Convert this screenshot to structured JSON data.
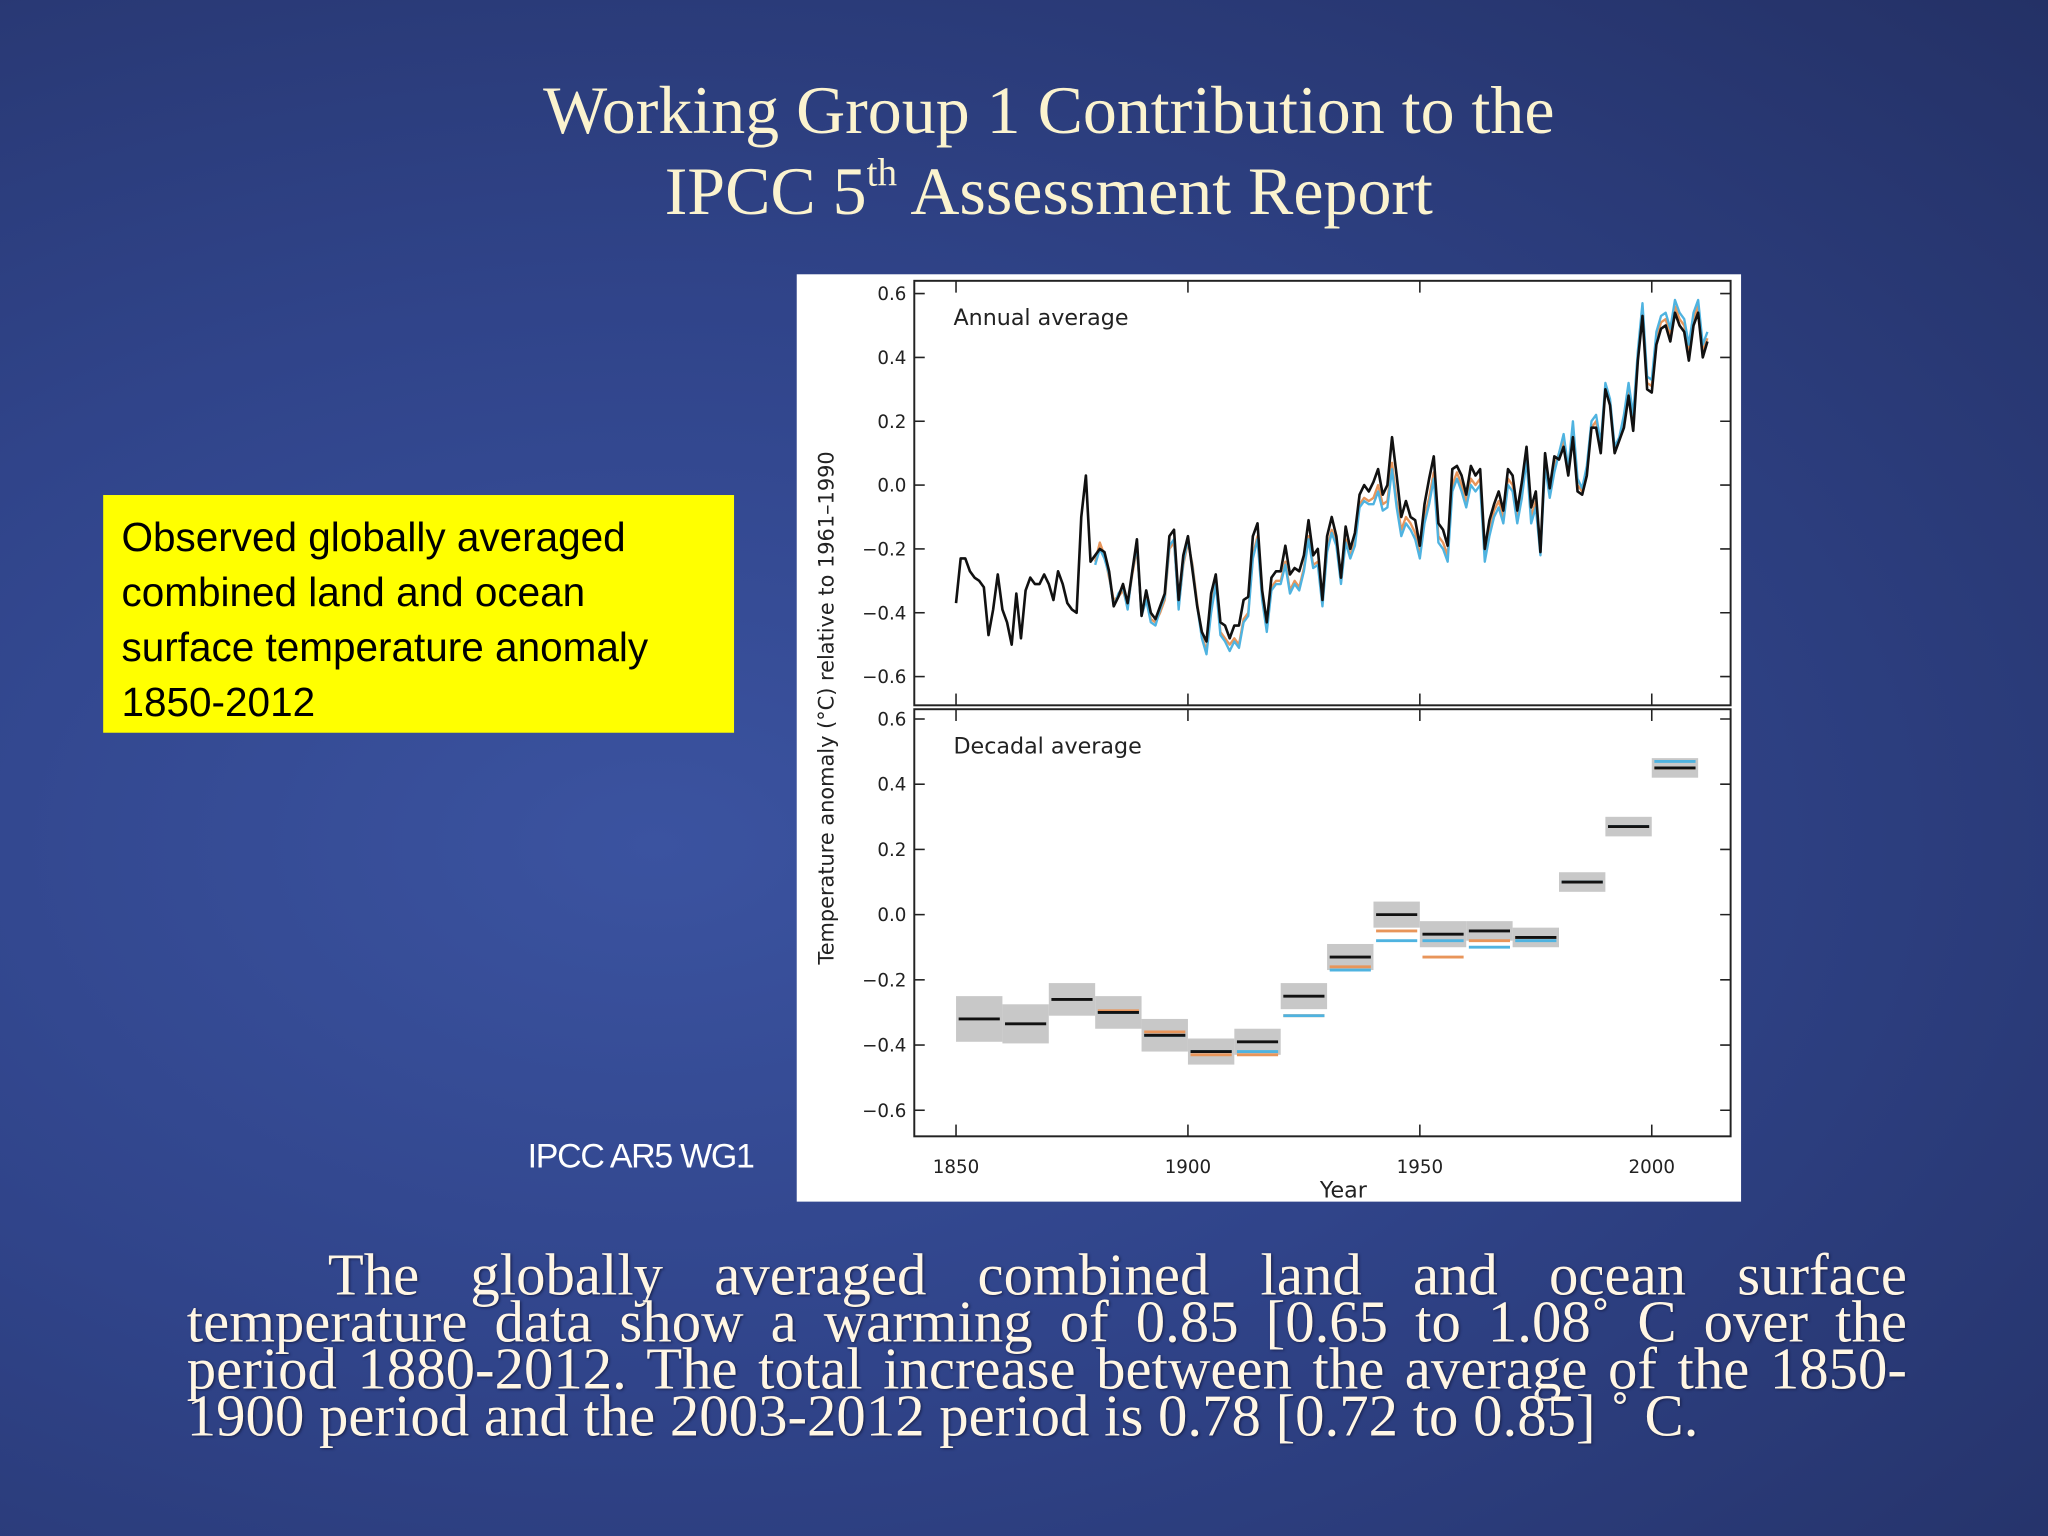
{
  "slide": {
    "title_line1": "Working Group 1 Contribution to the",
    "title_line2": {
      "before": "IPCC 5",
      "sup": "th",
      "after": " Assessment Report"
    },
    "caption": "Observed globally averaged combined land and ocean surface temperature anomaly 1850-2012",
    "source": "IPCC AR5 WG1",
    "body": "The globally averaged combined land and ocean surface temperature data show a warming of 0.85 [0.65 to 1.08˚ C over the period 1880-2012. The total increase between the average of the 1850-1900 period and the 2003-2012 period is 0.78 [0.72 to 0.85] ˚ C."
  },
  "chart_data": [
    {
      "type": "line",
      "annotation": "Annual average",
      "ylabel": "Temperature anomaly (°C) relative to 1961–1990",
      "xlim": [
        1841,
        2017
      ],
      "xticks": [
        1850,
        1900,
        1950,
        2000
      ],
      "ylim": [
        -0.69,
        0.64
      ],
      "yticks": [
        {
          "value": -0.6,
          "label": "−0.6"
        },
        {
          "value": -0.4,
          "label": "−0.4"
        },
        {
          "value": -0.2,
          "label": "−0.2"
        },
        {
          "value": 0,
          "label": "0.0"
        },
        0.2,
        0.4,
        0.6
      ],
      "x": [
        1850,
        1851,
        1852,
        1853,
        1854,
        1855,
        1856,
        1857,
        1858,
        1859,
        1860,
        1861,
        1862,
        1863,
        1864,
        1865,
        1866,
        1867,
        1868,
        1869,
        1870,
        1871,
        1872,
        1873,
        1874,
        1875,
        1876,
        1877,
        1878,
        1879,
        1880,
        1881,
        1882,
        1883,
        1884,
        1885,
        1886,
        1887,
        1888,
        1889,
        1890,
        1891,
        1892,
        1893,
        1894,
        1895,
        1896,
        1897,
        1898,
        1899,
        1900,
        1901,
        1902,
        1903,
        1904,
        1905,
        1906,
        1907,
        1908,
        1909,
        1910,
        1911,
        1912,
        1913,
        1914,
        1915,
        1916,
        1917,
        1918,
        1919,
        1920,
        1921,
        1922,
        1923,
        1924,
        1925,
        1926,
        1927,
        1928,
        1929,
        1930,
        1931,
        1932,
        1933,
        1934,
        1935,
        1936,
        1937,
        1938,
        1939,
        1940,
        1941,
        1942,
        1943,
        1944,
        1945,
        1946,
        1947,
        1948,
        1949,
        1950,
        1951,
        1952,
        1953,
        1954,
        1955,
        1956,
        1957,
        1958,
        1959,
        1960,
        1961,
        1962,
        1963,
        1964,
        1965,
        1966,
        1967,
        1968,
        1969,
        1970,
        1971,
        1972,
        1973,
        1974,
        1975,
        1976,
        1977,
        1978,
        1979,
        1980,
        1981,
        1982,
        1983,
        1984,
        1985,
        1986,
        1987,
        1988,
        1989,
        1990,
        1991,
        1992,
        1993,
        1994,
        1995,
        1996,
        1997,
        1998,
        1999,
        2000,
        2001,
        2002,
        2003,
        2004,
        2005,
        2006,
        2007,
        2008,
        2009,
        2010,
        2011,
        2012
      ],
      "series": [
        {
          "color": "#111111",
          "values": [
            -0.37,
            -0.23,
            -0.23,
            -0.27,
            -0.29,
            -0.3,
            -0.32,
            -0.47,
            -0.39,
            -0.28,
            -0.39,
            -0.43,
            -0.5,
            -0.34,
            -0.48,
            -0.33,
            -0.29,
            -0.31,
            -0.31,
            -0.28,
            -0.31,
            -0.36,
            -0.27,
            -0.31,
            -0.37,
            -0.39,
            -0.4,
            -0.1,
            0.03,
            -0.24,
            -0.22,
            -0.2,
            -0.21,
            -0.27,
            -0.38,
            -0.35,
            -0.31,
            -0.37,
            -0.27,
            -0.17,
            -0.41,
            -0.33,
            -0.4,
            -0.42,
            -0.38,
            -0.34,
            -0.16,
            -0.14,
            -0.36,
            -0.22,
            -0.16,
            -0.27,
            -0.38,
            -0.46,
            -0.49,
            -0.34,
            -0.28,
            -0.43,
            -0.44,
            -0.48,
            -0.44,
            -0.44,
            -0.36,
            -0.35,
            -0.16,
            -0.12,
            -0.33,
            -0.43,
            -0.29,
            -0.27,
            -0.27,
            -0.19,
            -0.28,
            -0.26,
            -0.27,
            -0.22,
            -0.11,
            -0.22,
            -0.2,
            -0.36,
            -0.16,
            -0.1,
            -0.16,
            -0.29,
            -0.13,
            -0.2,
            -0.15,
            -0.03,
            0.0,
            -0.02,
            0.01,
            0.05,
            -0.03,
            0.0,
            0.15,
            0.03,
            -0.1,
            -0.05,
            -0.1,
            -0.11,
            -0.19,
            -0.06,
            0.02,
            0.09,
            -0.12,
            -0.14,
            -0.19,
            0.05,
            0.06,
            0.03,
            -0.03,
            0.06,
            0.03,
            0.05,
            -0.2,
            -0.11,
            -0.06,
            -0.02,
            -0.08,
            0.05,
            0.03,
            -0.08,
            0.01,
            0.12,
            -0.07,
            -0.02,
            -0.21,
            0.1,
            -0.01,
            0.09,
            0.08,
            0.12,
            0.03,
            0.15,
            -0.02,
            -0.03,
            0.03,
            0.18,
            0.18,
            0.1,
            0.3,
            0.25,
            0.1,
            0.14,
            0.18,
            0.28,
            0.17,
            0.39,
            0.53,
            0.3,
            0.29,
            0.44,
            0.49,
            0.5,
            0.45,
            0.54,
            0.5,
            0.48,
            0.39,
            0.5,
            0.54,
            0.4,
            0.45
          ]
        },
        {
          "color": "#4fb3e0",
          "values": [
            null,
            null,
            null,
            null,
            null,
            null,
            null,
            null,
            null,
            null,
            null,
            null,
            null,
            null,
            null,
            null,
            null,
            null,
            null,
            null,
            null,
            null,
            null,
            null,
            null,
            null,
            null,
            null,
            null,
            null,
            -0.25,
            -0.2,
            -0.23,
            -0.28,
            -0.38,
            -0.34,
            -0.32,
            -0.39,
            -0.27,
            -0.19,
            -0.41,
            -0.36,
            -0.43,
            -0.44,
            -0.39,
            -0.35,
            -0.19,
            -0.17,
            -0.39,
            -0.24,
            -0.17,
            -0.26,
            -0.38,
            -0.48,
            -0.53,
            -0.4,
            -0.31,
            -0.47,
            -0.49,
            -0.52,
            -0.49,
            -0.51,
            -0.43,
            -0.41,
            -0.23,
            -0.17,
            -0.36,
            -0.46,
            -0.33,
            -0.31,
            -0.31,
            -0.25,
            -0.34,
            -0.31,
            -0.33,
            -0.27,
            -0.17,
            -0.26,
            -0.25,
            -0.38,
            -0.21,
            -0.15,
            -0.19,
            -0.31,
            -0.18,
            -0.23,
            -0.19,
            -0.07,
            -0.05,
            -0.06,
            -0.06,
            -0.02,
            -0.08,
            -0.07,
            0.05,
            -0.07,
            -0.16,
            -0.12,
            -0.14,
            -0.17,
            -0.23,
            -0.12,
            -0.06,
            0.02,
            -0.18,
            -0.2,
            -0.24,
            -0.02,
            0.02,
            -0.02,
            -0.07,
            0.0,
            -0.02,
            0.0,
            -0.24,
            -0.16,
            -0.1,
            -0.07,
            -0.12,
            0.0,
            -0.02,
            -0.12,
            -0.04,
            0.08,
            -0.12,
            -0.07,
            -0.22,
            0.06,
            -0.04,
            0.04,
            0.1,
            0.16,
            0.05,
            0.2,
            0.02,
            -0.01,
            0.06,
            0.2,
            0.22,
            0.13,
            0.32,
            0.27,
            0.12,
            0.15,
            0.22,
            0.32,
            0.22,
            0.42,
            0.57,
            0.34,
            0.33,
            0.48,
            0.53,
            0.54,
            0.49,
            0.58,
            0.54,
            0.52,
            0.44,
            0.54,
            0.58,
            0.44,
            0.48
          ]
        },
        {
          "color": "#e8955a",
          "values": [
            null,
            null,
            null,
            null,
            null,
            null,
            null,
            null,
            null,
            null,
            null,
            null,
            null,
            null,
            null,
            null,
            null,
            null,
            null,
            null,
            null,
            null,
            null,
            null,
            null,
            null,
            null,
            null,
            null,
            null,
            -0.24,
            -0.18,
            -0.22,
            -0.29,
            -0.36,
            -0.35,
            -0.33,
            -0.38,
            -0.28,
            -0.2,
            -0.4,
            -0.35,
            -0.42,
            -0.43,
            -0.4,
            -0.36,
            -0.2,
            -0.18,
            -0.38,
            -0.25,
            -0.18,
            -0.25,
            -0.37,
            -0.47,
            -0.52,
            -0.39,
            -0.3,
            -0.46,
            -0.48,
            -0.5,
            -0.48,
            -0.5,
            -0.42,
            -0.4,
            -0.22,
            -0.16,
            -0.35,
            -0.45,
            -0.32,
            -0.3,
            -0.3,
            -0.24,
            -0.33,
            -0.3,
            -0.32,
            -0.26,
            -0.16,
            -0.25,
            -0.24,
            -0.37,
            -0.2,
            -0.14,
            -0.18,
            -0.3,
            -0.17,
            -0.22,
            -0.18,
            -0.06,
            -0.04,
            -0.05,
            -0.04,
            0.0,
            -0.06,
            -0.05,
            0.07,
            -0.05,
            -0.14,
            -0.1,
            -0.12,
            -0.15,
            -0.22,
            -0.1,
            -0.04,
            0.04,
            -0.16,
            -0.18,
            -0.22,
            0.0,
            0.04,
            0.0,
            -0.05,
            0.02,
            0.0,
            0.02,
            -0.22,
            -0.14,
            -0.08,
            -0.05,
            -0.1,
            0.02,
            0.0,
            -0.1,
            -0.02,
            0.1,
            -0.1,
            -0.05,
            -0.2,
            0.08,
            -0.02,
            0.06,
            0.1,
            0.14,
            0.04,
            0.18,
            0.0,
            -0.02,
            0.05,
            0.18,
            0.2,
            0.12,
            0.3,
            0.26,
            0.1,
            0.14,
            0.2,
            0.3,
            0.2,
            0.4,
            0.55,
            0.32,
            0.31,
            0.46,
            0.51,
            0.52,
            0.47,
            0.56,
            0.52,
            0.5,
            0.42,
            0.52,
            0.56,
            0.42,
            0.46
          ]
        }
      ]
    },
    {
      "type": "box",
      "annotation": "Decadal average",
      "xlabel": "Year",
      "xlim": [
        1841,
        2017
      ],
      "xticks": [
        1850,
        1900,
        1950,
        2000
      ],
      "ylim": [
        -0.68,
        0.63
      ],
      "yticks": [
        {
          "value": -0.6,
          "label": "−0.6"
        },
        {
          "value": -0.4,
          "label": "−0.4"
        },
        {
          "value": -0.2,
          "label": "−0.2"
        },
        {
          "value": 0,
          "label": "0.0"
        },
        0.2,
        0.4,
        0.6
      ],
      "x": [
        1850,
        1860,
        1870,
        1880,
        1890,
        1900,
        1910,
        1920,
        1930,
        1940,
        1950,
        1960,
        1970,
        1980,
        1990,
        2000
      ],
      "box_color": "#c8c8c8",
      "series": [
        {
          "color": "#111111",
          "values": [
            -0.32,
            -0.335,
            -0.26,
            -0.3,
            -0.37,
            -0.42,
            -0.39,
            -0.25,
            -0.13,
            0.0,
            -0.06,
            -0.05,
            -0.07,
            0.1,
            0.27,
            0.45
          ],
          "errors": [
            0.07,
            0.06,
            0.05,
            0.05,
            0.05,
            0.04,
            0.04,
            0.04,
            0.04,
            0.04,
            0.04,
            0.03,
            0.03,
            0.03,
            0.03,
            0.03
          ]
        },
        {
          "color": "#4fb3e0",
          "values": [
            null,
            null,
            null,
            -0.3,
            -0.37,
            -0.42,
            -0.42,
            -0.31,
            -0.17,
            -0.08,
            -0.08,
            -0.1,
            -0.08,
            0.1,
            0.27,
            0.47
          ]
        },
        {
          "color": "#e8955a",
          "values": [
            null,
            null,
            null,
            -0.295,
            -0.36,
            -0.43,
            -0.43,
            -0.31,
            -0.16,
            -0.05,
            -0.13,
            -0.08,
            -0.07,
            0.1,
            0.27,
            0.45
          ]
        }
      ]
    }
  ]
}
